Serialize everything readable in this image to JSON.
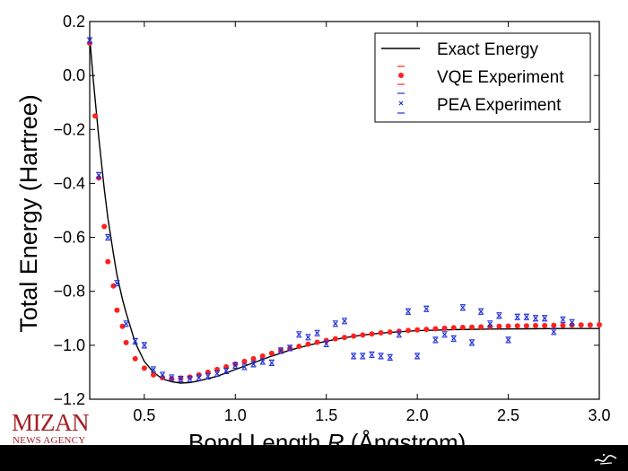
{
  "chart_data": {
    "type": "line",
    "xlabel": "Bond Length R (Ångstrom)",
    "xlabel_prefix": "Bond Length ",
    "xlabel_var": "R",
    "xlabel_suffix": " (Ångstrom)",
    "ylabel": "Total Energy (Hartree)",
    "xlim": [
      0.2,
      3.0
    ],
    "ylim": [
      -1.2,
      0.2
    ],
    "xticks": [
      "0.5",
      "1.0",
      "1.5",
      "2.0",
      "2.5",
      "3.0"
    ],
    "yticks": [
      "0.2",
      "0.0",
      "−0.2",
      "−0.4",
      "−0.6",
      "−0.8",
      "−1.0",
      "−1.2"
    ],
    "legend_position": "top-right",
    "legend": [
      "Exact Energy",
      "VQE Experiment",
      "PEA Experiment"
    ],
    "colors": {
      "exact": "#000000",
      "vqe": "#ff2020",
      "pea": "#1e2fd6"
    },
    "series": [
      {
        "name": "Exact Energy",
        "x": [
          0.2,
          0.22,
          0.25,
          0.28,
          0.3,
          0.33,
          0.35,
          0.38,
          0.4,
          0.45,
          0.5,
          0.55,
          0.6,
          0.65,
          0.7,
          0.75,
          0.8,
          0.9,
          1.0,
          1.1,
          1.2,
          1.3,
          1.4,
          1.5,
          1.6,
          1.7,
          1.8,
          1.9,
          2.0,
          2.2,
          2.4,
          2.6,
          2.8,
          3.0
        ],
        "values": [
          0.14,
          -0.02,
          -0.23,
          -0.42,
          -0.53,
          -0.66,
          -0.74,
          -0.83,
          -0.88,
          -0.99,
          -1.06,
          -1.1,
          -1.125,
          -1.135,
          -1.14,
          -1.138,
          -1.132,
          -1.115,
          -1.09,
          -1.065,
          -1.04,
          -1.018,
          -1.0,
          -0.985,
          -0.972,
          -0.962,
          -0.955,
          -0.95,
          -0.946,
          -0.942,
          -0.94,
          -0.939,
          -0.938,
          -0.938
        ]
      },
      {
        "name": "VQE Experiment",
        "x": [
          0.2,
          0.23,
          0.25,
          0.28,
          0.3,
          0.33,
          0.35,
          0.38,
          0.4,
          0.45,
          0.5,
          0.55,
          0.6,
          0.65,
          0.7,
          0.75,
          0.8,
          0.85,
          0.9,
          0.95,
          1.0,
          1.05,
          1.1,
          1.15,
          1.2,
          1.25,
          1.3,
          1.35,
          1.4,
          1.45,
          1.5,
          1.55,
          1.6,
          1.65,
          1.7,
          1.75,
          1.8,
          1.85,
          1.9,
          1.95,
          2.0,
          2.05,
          2.1,
          2.15,
          2.2,
          2.25,
          2.3,
          2.35,
          2.4,
          2.45,
          2.5,
          2.55,
          2.6,
          2.65,
          2.7,
          2.75,
          2.8,
          2.85,
          2.9,
          2.95,
          3.0
        ],
        "values": [
          0.12,
          -0.15,
          -0.38,
          -0.56,
          -0.69,
          -0.78,
          -0.87,
          -0.93,
          -0.99,
          -1.05,
          -1.085,
          -1.11,
          -1.12,
          -1.124,
          -1.122,
          -1.118,
          -1.11,
          -1.1,
          -1.09,
          -1.08,
          -1.07,
          -1.06,
          -1.05,
          -1.04,
          -1.03,
          -1.02,
          -1.012,
          -1.004,
          -0.996,
          -0.989,
          -0.982,
          -0.976,
          -0.971,
          -0.966,
          -0.962,
          -0.958,
          -0.954,
          -0.951,
          -0.948,
          -0.945,
          -0.943,
          -0.941,
          -0.939,
          -0.937,
          -0.935,
          -0.934,
          -0.933,
          -0.932,
          -0.931,
          -0.93,
          -0.929,
          -0.928,
          -0.928,
          -0.927,
          -0.927,
          -0.926,
          -0.926,
          -0.925,
          -0.925,
          -0.925,
          -0.924
        ]
      },
      {
        "name": "PEA Experiment",
        "x": [
          0.2,
          0.25,
          0.3,
          0.35,
          0.4,
          0.45,
          0.5,
          0.55,
          0.6,
          0.65,
          0.7,
          0.75,
          0.8,
          0.85,
          0.9,
          0.95,
          1.0,
          1.05,
          1.1,
          1.15,
          1.2,
          1.25,
          1.3,
          1.35,
          1.4,
          1.45,
          1.5,
          1.55,
          1.6,
          1.65,
          1.7,
          1.75,
          1.8,
          1.85,
          1.9,
          1.95,
          2.0,
          2.05,
          2.1,
          2.15,
          2.2,
          2.25,
          2.3,
          2.35,
          2.4,
          2.45,
          2.5,
          2.55,
          2.6,
          2.65,
          2.7,
          2.75,
          2.8,
          2.85
        ],
        "values": [
          0.13,
          -0.37,
          -0.6,
          -0.77,
          -0.92,
          -0.985,
          -1.0,
          -1.09,
          -1.11,
          -1.12,
          -1.125,
          -1.125,
          -1.12,
          -1.115,
          -1.105,
          -1.095,
          -1.075,
          -1.08,
          -1.07,
          -1.06,
          -1.065,
          -1.02,
          -1.01,
          -0.96,
          -0.97,
          -0.955,
          -0.995,
          -0.92,
          -0.91,
          -1.04,
          -1.04,
          -1.035,
          -1.04,
          -1.045,
          -0.96,
          -0.875,
          -1.04,
          -0.865,
          -0.98,
          -0.96,
          -0.975,
          -0.86,
          -0.99,
          -0.875,
          -0.92,
          -0.89,
          -0.98,
          -0.895,
          -0.895,
          -0.9,
          -0.9,
          -0.95,
          -0.905,
          -0.915
        ]
      }
    ]
  },
  "watermark": {
    "main": "MIZAN",
    "sub": "NEWS AGENCY"
  }
}
